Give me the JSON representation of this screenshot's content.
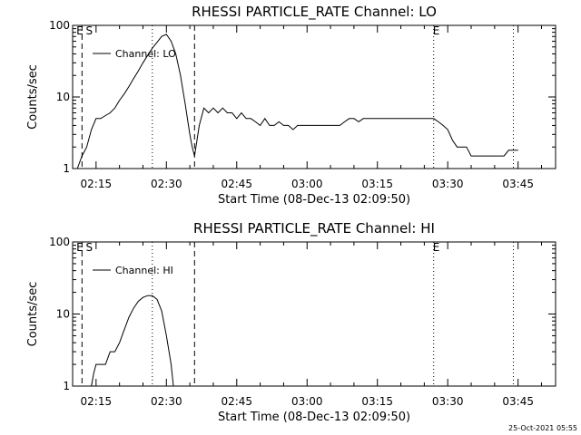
{
  "timestamp": "25-Oct-2021 05:55",
  "marker_labels": {
    "E": "E",
    "S": "S"
  },
  "chart_data": [
    {
      "type": "line",
      "title": "RHESSI PARTICLE_RATE Channel: LO",
      "xlabel": "Start Time (08-Dec-13 02:09:50)",
      "ylabel": "Counts/sec",
      "yscale": "log",
      "ylim": [
        1,
        100
      ],
      "yticks": [
        {
          "value": 1,
          "label": "1"
        },
        {
          "value": 10,
          "label": "10"
        },
        {
          "value": 100,
          "label": "100"
        }
      ],
      "xlim": [
        "02:10",
        "03:53"
      ],
      "xticks": [
        "02:15",
        "02:30",
        "02:45",
        "03:00",
        "03:15",
        "03:30",
        "03:45"
      ],
      "legend": {
        "label": "Channel: LO",
        "position": "top-left"
      },
      "dashed_markers": [
        "02:12",
        "02:36"
      ],
      "dotted_markers": [
        "02:27",
        "03:27",
        "03:44"
      ],
      "marker_letters": [
        {
          "time": "02:11",
          "letter": "E"
        },
        {
          "time": "02:13",
          "letter": "S"
        },
        {
          "time": "03:27",
          "letter": "E"
        }
      ],
      "series": [
        {
          "name": "Channel: LO",
          "segments": [
            [
              [
                "02:11",
                1
              ],
              [
                "02:12",
                1.5
              ],
              [
                "02:13",
                2
              ],
              [
                "02:14",
                3.5
              ],
              [
                "02:15",
                5
              ],
              [
                "02:16",
                5
              ],
              [
                "02:17",
                5.5
              ],
              [
                "02:18",
                6
              ],
              [
                "02:19",
                7
              ],
              [
                "02:20",
                9
              ],
              [
                "02:21",
                11
              ],
              [
                "02:22",
                14
              ],
              [
                "02:23",
                18
              ],
              [
                "02:24",
                23
              ],
              [
                "02:25",
                30
              ],
              [
                "02:26",
                38
              ],
              [
                "02:27",
                48
              ],
              [
                "02:28",
                58
              ],
              [
                "02:29",
                70
              ],
              [
                "02:30",
                75
              ],
              [
                "02:31",
                60
              ],
              [
                "02:32",
                40
              ],
              [
                "02:33",
                20
              ],
              [
                "02:34",
                8
              ],
              [
                "02:35",
                3
              ],
              [
                "02:35:30",
                2
              ],
              [
                "02:36",
                1.5
              ],
              [
                "02:37",
                4
              ],
              [
                "02:38",
                7
              ],
              [
                "02:39",
                6
              ],
              [
                "02:40",
                7
              ],
              [
                "02:41",
                6
              ],
              [
                "02:42",
                7
              ],
              [
                "02:43",
                6
              ],
              [
                "02:44",
                6
              ],
              [
                "02:45",
                5
              ],
              [
                "02:46",
                6
              ],
              [
                "02:47",
                5
              ],
              [
                "02:48",
                5
              ],
              [
                "02:49",
                4.5
              ],
              [
                "02:50",
                4
              ],
              [
                "02:51",
                5
              ],
              [
                "02:52",
                4
              ],
              [
                "02:53",
                4
              ],
              [
                "02:54",
                4.5
              ],
              [
                "02:55",
                4
              ],
              [
                "02:56",
                4
              ],
              [
                "02:57",
                3.5
              ],
              [
                "02:58",
                4
              ],
              [
                "02:59",
                4
              ],
              [
                "03:00",
                4
              ],
              [
                "03:01",
                4
              ],
              [
                "03:02",
                4
              ],
              [
                "03:03",
                4
              ],
              [
                "03:04",
                4
              ],
              [
                "03:05",
                4
              ],
              [
                "03:06",
                4
              ],
              [
                "03:07",
                4
              ],
              [
                "03:08",
                4.5
              ],
              [
                "03:09",
                5
              ],
              [
                "03:10",
                5
              ],
              [
                "03:11",
                4.5
              ],
              [
                "03:12",
                5
              ],
              [
                "03:13",
                5
              ],
              [
                "03:14",
                5
              ],
              [
                "03:15",
                5
              ],
              [
                "03:16",
                5
              ],
              [
                "03:17",
                5
              ],
              [
                "03:18",
                5
              ],
              [
                "03:19",
                5
              ],
              [
                "03:20",
                5
              ],
              [
                "03:21",
                5
              ],
              [
                "03:22",
                5
              ],
              [
                "03:23",
                5
              ],
              [
                "03:24",
                5
              ],
              [
                "03:25",
                5
              ],
              [
                "03:26",
                5
              ],
              [
                "03:27",
                5
              ],
              [
                "03:28",
                4.5
              ],
              [
                "03:29",
                4
              ],
              [
                "03:30",
                3.5
              ],
              [
                "03:31",
                2.5
              ],
              [
                "03:32",
                2
              ],
              [
                "03:33",
                2
              ],
              [
                "03:34",
                2
              ],
              [
                "03:35",
                1.5
              ],
              [
                "03:36",
                1.5
              ],
              [
                "03:37",
                1.5
              ],
              [
                "03:38",
                1.5
              ],
              [
                "03:39",
                1.5
              ],
              [
                "03:40",
                1.5
              ],
              [
                "03:41",
                1.5
              ],
              [
                "03:42",
                1.5
              ],
              [
                "03:43",
                1.8
              ],
              [
                "03:44",
                1.8
              ],
              [
                "03:45",
                1.8
              ]
            ]
          ]
        }
      ]
    },
    {
      "type": "line",
      "title": "RHESSI PARTICLE_RATE Channel: HI",
      "xlabel": "Start Time (08-Dec-13 02:09:50)",
      "ylabel": "Counts/sec",
      "yscale": "log",
      "ylim": [
        1,
        100
      ],
      "yticks": [
        {
          "value": 1,
          "label": "1"
        },
        {
          "value": 10,
          "label": "10"
        },
        {
          "value": 100,
          "label": "100"
        }
      ],
      "xlim": [
        "02:10",
        "03:53"
      ],
      "xticks": [
        "02:15",
        "02:30",
        "02:45",
        "03:00",
        "03:15",
        "03:30",
        "03:45"
      ],
      "legend": {
        "label": "Channel: HI",
        "position": "top-left"
      },
      "dashed_markers": [
        "02:12",
        "02:36"
      ],
      "dotted_markers": [
        "02:27",
        "03:27",
        "03:44"
      ],
      "marker_letters": [
        {
          "time": "02:11",
          "letter": "E"
        },
        {
          "time": "02:13",
          "letter": "S"
        },
        {
          "time": "03:27",
          "letter": "E"
        }
      ],
      "series": [
        {
          "name": "Channel: HI",
          "segments": [
            [
              [
                "02:14",
                1
              ],
              [
                "02:14:30",
                1.5
              ],
              [
                "02:15",
                2
              ],
              [
                "02:16",
                2
              ],
              [
                "02:17",
                2
              ],
              [
                "02:18",
                3
              ],
              [
                "02:19",
                3
              ],
              [
                "02:20",
                4
              ],
              [
                "02:21",
                6
              ],
              [
                "02:22",
                9
              ],
              [
                "02:23",
                12
              ],
              [
                "02:24",
                15
              ],
              [
                "02:25",
                17
              ],
              [
                "02:26",
                18
              ],
              [
                "02:27",
                18
              ],
              [
                "02:28",
                16
              ],
              [
                "02:29",
                11
              ],
              [
                "02:30",
                5
              ],
              [
                "02:31",
                2
              ],
              [
                "02:31:30",
                1
              ]
            ]
          ]
        }
      ]
    }
  ]
}
